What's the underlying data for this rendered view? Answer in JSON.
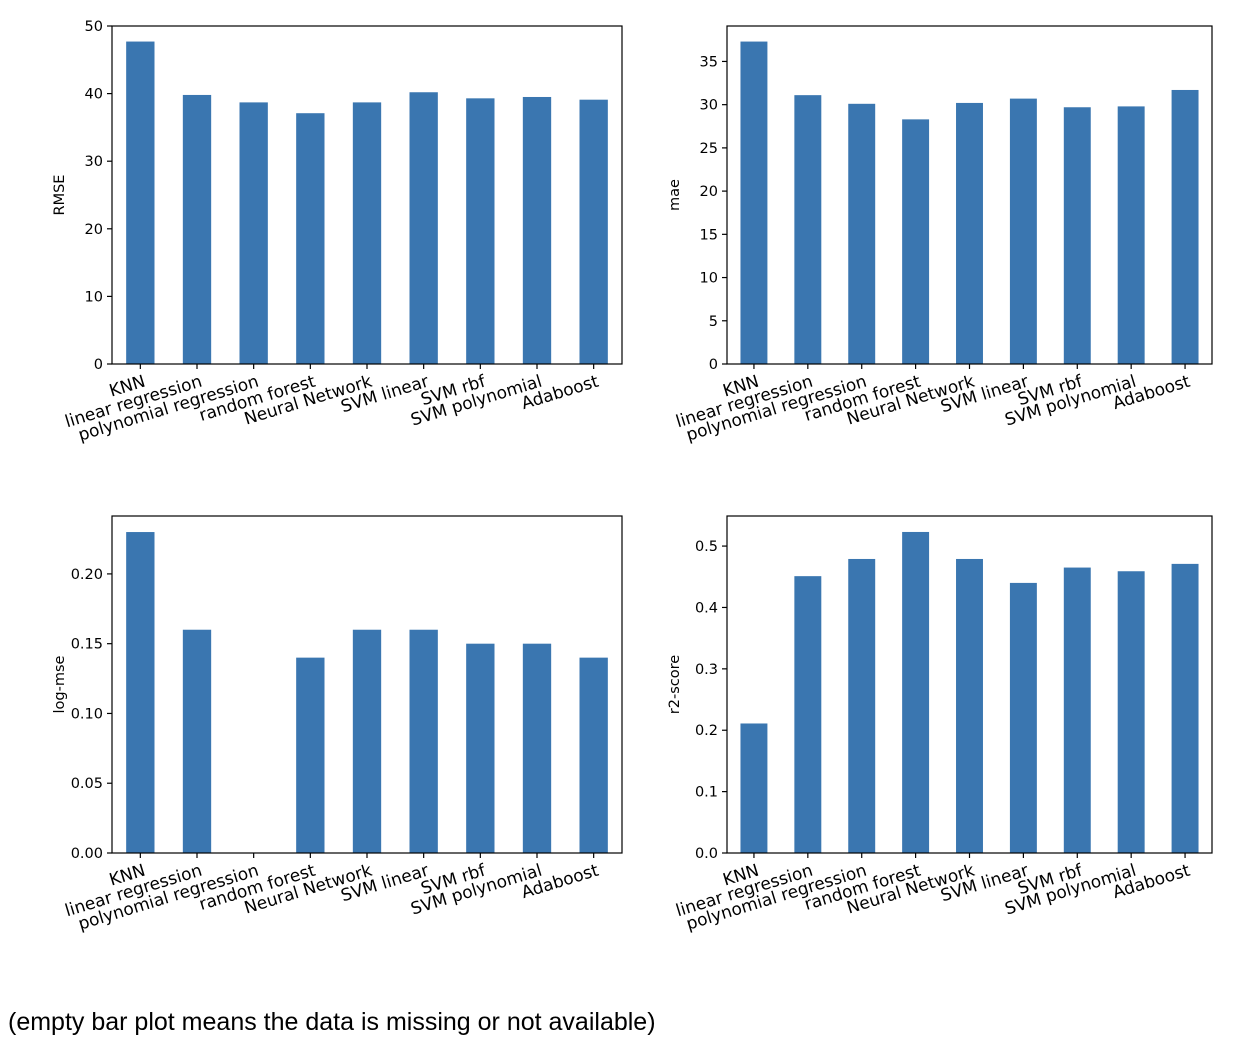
{
  "caption": "(empty bar plot means the data is missing or not available)",
  "colors": {
    "bar": "#3a76b0",
    "axis": "#000000"
  },
  "chart_data": [
    {
      "type": "bar",
      "categories": [
        "KNN",
        "linear regression",
        "polynomial regression",
        "random forest",
        "Neural Network",
        "SVM linear",
        "SVM rbf",
        "SVM polynomial",
        "Adaboost"
      ],
      "values": [
        47.7,
        39.8,
        38.7,
        37.1,
        38.7,
        40.2,
        39.3,
        39.5,
        39.1
      ],
      "ylabel": "RMSE",
      "ylim": [
        0,
        50
      ],
      "yticks": [
        0,
        10,
        20,
        30,
        40,
        50
      ],
      "grid": false
    },
    {
      "type": "bar",
      "categories": [
        "KNN",
        "linear regression",
        "polynomial regression",
        "random forest",
        "Neural Network",
        "SVM linear",
        "SVM rbf",
        "SVM polynomial",
        "Adaboost"
      ],
      "values": [
        37.3,
        31.1,
        30.1,
        28.3,
        30.2,
        30.7,
        29.7,
        29.8,
        31.7
      ],
      "ylabel": "mae",
      "ylim": [
        0,
        39.1
      ],
      "yticks": [
        0,
        5,
        10,
        15,
        20,
        25,
        30,
        35
      ],
      "grid": false
    },
    {
      "type": "bar",
      "categories": [
        "KNN",
        "linear regression",
        "polynomial regression",
        "random forest",
        "Neural Network",
        "SVM linear",
        "SVM rbf",
        "SVM polynomial",
        "Adaboost"
      ],
      "values": [
        0.23,
        0.16,
        null,
        0.14,
        0.16,
        0.16,
        0.15,
        0.15,
        0.14
      ],
      "ylabel": "log-mse",
      "ylim": [
        0,
        0.2415
      ],
      "yticks": [
        0.0,
        0.05,
        0.1,
        0.15,
        0.2
      ],
      "ytick_labels": [
        "0.00",
        "0.05",
        "0.10",
        "0.15",
        "0.20"
      ],
      "grid": false
    },
    {
      "type": "bar",
      "categories": [
        "KNN",
        "linear regression",
        "polynomial regression",
        "random forest",
        "Neural Network",
        "SVM linear",
        "SVM rbf",
        "SVM polynomial",
        "Adaboost"
      ],
      "values": [
        0.211,
        0.451,
        0.479,
        0.523,
        0.479,
        0.44,
        0.465,
        0.459,
        0.471
      ],
      "ylabel": "r2-score",
      "ylim": [
        0,
        0.549
      ],
      "yticks": [
        0.0,
        0.1,
        0.2,
        0.3,
        0.4,
        0.5
      ],
      "ytick_labels": [
        "0.0",
        "0.1",
        "0.2",
        "0.3",
        "0.4",
        "0.5"
      ],
      "grid": false
    }
  ]
}
